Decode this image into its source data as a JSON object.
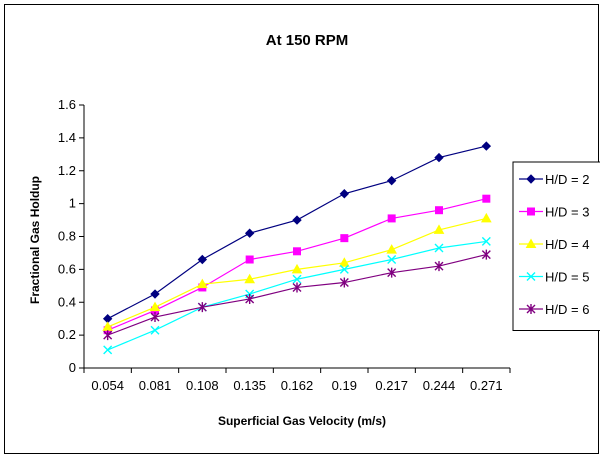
{
  "chart_data": {
    "type": "line",
    "title": "At 150 RPM",
    "xlabel": "Superficial Gas Velocity (m/s)",
    "ylabel": "Fractional Gas Holdup",
    "categories": [
      "0.054",
      "0.081",
      "0.108",
      "0.135",
      "0.162",
      "0.19",
      "0.217",
      "0.244",
      "0.271"
    ],
    "ylim": [
      0,
      1.6
    ],
    "yticks": [
      "0",
      "0.2",
      "0.4",
      "0.6",
      "0.8",
      "1",
      "1.2",
      "1.4",
      "1.6"
    ],
    "grid": false,
    "legend_position": "right",
    "series": [
      {
        "name": "H/D = 2",
        "color": "#000080",
        "marker": "diamond",
        "values": [
          0.3,
          0.45,
          0.66,
          0.82,
          0.9,
          1.06,
          1.14,
          1.28,
          1.35
        ]
      },
      {
        "name": "H/D = 3",
        "color": "#FF00FF",
        "marker": "square",
        "values": [
          0.23,
          0.35,
          0.49,
          0.66,
          0.71,
          0.79,
          0.91,
          0.96,
          1.03
        ]
      },
      {
        "name": "H/D = 4",
        "color": "#FFFF00",
        "marker": "triangle",
        "values": [
          0.25,
          0.37,
          0.51,
          0.54,
          0.6,
          0.64,
          0.72,
          0.84,
          0.91
        ]
      },
      {
        "name": "H/D = 5",
        "color": "#00FFFF",
        "marker": "x",
        "values": [
          0.11,
          0.23,
          0.37,
          0.45,
          0.54,
          0.6,
          0.66,
          0.73,
          0.77
        ]
      },
      {
        "name": "H/D = 6",
        "color": "#800080",
        "marker": "star",
        "values": [
          0.2,
          0.31,
          0.37,
          0.42,
          0.49,
          0.52,
          0.58,
          0.62,
          0.69
        ]
      }
    ]
  }
}
